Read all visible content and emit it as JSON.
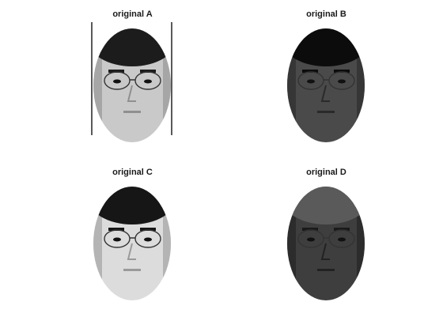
{
  "figure": {
    "panels": [
      {
        "id": "a",
        "title": "original A",
        "skin": "#c9c9c9",
        "hair": "#1c1c1c",
        "shade": "#8f8f8f",
        "borders": true
      },
      {
        "id": "b",
        "title": "original B",
        "skin": "#4a4a4a",
        "hair": "#0c0c0c",
        "shade": "#2a2a2a",
        "borders": false
      },
      {
        "id": "c",
        "title": "original C",
        "skin": "#dcdcdc",
        "hair": "#161616",
        "shade": "#9a9a9a",
        "borders": false
      },
      {
        "id": "d",
        "title": "original D",
        "skin": "#3e3e3e",
        "hair": "#5a5a5a",
        "shade": "#222222",
        "borders": false
      }
    ]
  }
}
